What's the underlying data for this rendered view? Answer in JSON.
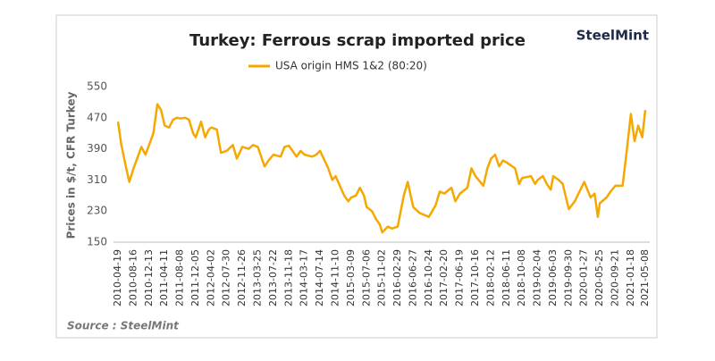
{
  "chart_data": {
    "type": "line",
    "title": "Turkey: Ferrous scrap imported price",
    "logo": "SteelMint",
    "ylabel": "Prices in $/t, CFR Turkey",
    "source": "Source : SteelMint",
    "xlim": [
      "2010-04-19",
      "2021-05-08"
    ],
    "xticks": [
      "2010-04-19",
      "2010-08-16",
      "2010-12-13",
      "2011-04-11",
      "2011-08-08",
      "2011-12-05",
      "2012-04-02",
      "2012-07-30",
      "2012-11-26",
      "2013-03-25",
      "2013-07-22",
      "2013-11-18",
      "2014-03-17",
      "2014-07-14",
      "2014-11-10",
      "2015-03-09",
      "2015-07-06",
      "2015-11-02",
      "2016-02-29",
      "2016-06-27",
      "2016-10-24",
      "2017-02-20",
      "2017-06-19",
      "2017-10-16",
      "2018-02-12",
      "2018-06-11",
      "2018-10-08",
      "2019-02-04",
      "2019-06-03",
      "2019-09-30",
      "2020-01-27",
      "2020-05-25",
      "2020-09-21",
      "2021-01-18",
      "2021-05-08"
    ],
    "ylim": [
      150,
      550
    ],
    "yticks": [
      150,
      230,
      310,
      390,
      470,
      550
    ],
    "grid": false,
    "x": [
      "2010-04-19",
      "2010-05-15",
      "2010-06-15",
      "2010-07-15",
      "2010-08-16",
      "2010-10-15",
      "2010-11-15",
      "2010-12-13",
      "2011-01-15",
      "2011-02-15",
      "2011-03-15",
      "2011-04-11",
      "2011-05-15",
      "2011-06-15",
      "2011-07-15",
      "2011-08-08",
      "2011-09-15",
      "2011-10-15",
      "2011-11-15",
      "2011-12-05",
      "2012-01-15",
      "2012-02-15",
      "2012-03-15",
      "2012-04-02",
      "2012-05-15",
      "2012-06-15",
      "2012-07-30",
      "2012-09-15",
      "2012-10-15",
      "2012-11-26",
      "2013-01-15",
      "2013-02-15",
      "2013-03-25",
      "2013-05-15",
      "2013-06-15",
      "2013-07-22",
      "2013-09-15",
      "2013-10-15",
      "2013-11-18",
      "2014-01-15",
      "2014-02-15",
      "2014-03-17",
      "2014-05-15",
      "2014-06-15",
      "2014-07-14",
      "2014-09-15",
      "2014-10-15",
      "2014-11-10",
      "2015-01-15",
      "2015-02-15",
      "2015-03-09",
      "2015-04-15",
      "2015-05-15",
      "2015-06-15",
      "2015-07-06",
      "2015-08-15",
      "2015-09-15",
      "2015-10-15",
      "2015-11-02",
      "2015-12-15",
      "2016-01-15",
      "2016-02-29",
      "2016-04-15",
      "2016-05-15",
      "2016-06-27",
      "2016-08-15",
      "2016-10-24",
      "2016-12-15",
      "2017-01-15",
      "2017-02-20",
      "2017-04-15",
      "2017-05-15",
      "2017-06-19",
      "2017-08-15",
      "2017-09-15",
      "2017-10-16",
      "2017-12-15",
      "2018-01-15",
      "2018-02-12",
      "2018-03-15",
      "2018-04-15",
      "2018-05-15",
      "2018-06-11",
      "2018-08-15",
      "2018-09-15",
      "2018-10-08",
      "2018-12-15",
      "2019-01-15",
      "2019-02-04",
      "2019-03-15",
      "2019-04-15",
      "2019-05-15",
      "2019-06-03",
      "2019-07-15",
      "2019-08-15",
      "2019-09-30",
      "2019-11-15",
      "2020-01-27",
      "2020-03-15",
      "2020-04-15",
      "2020-05-10",
      "2020-05-25",
      "2020-07-15",
      "2020-08-15",
      "2020-09-21",
      "2020-11-15",
      "2020-12-15",
      "2021-01-18",
      "2021-02-15",
      "2021-03-15",
      "2021-04-15",
      "2021-05-08"
    ],
    "series": [
      {
        "name": "USA origin HMS 1&2 (80:20)",
        "color": "#f5a800",
        "values": [
          460,
          400,
          350,
          305,
          340,
          395,
          375,
          400,
          430,
          505,
          490,
          450,
          445,
          465,
          470,
          468,
          470,
          465,
          430,
          420,
          460,
          420,
          440,
          445,
          440,
          380,
          385,
          400,
          365,
          395,
          390,
          400,
          395,
          345,
          360,
          375,
          370,
          395,
          398,
          370,
          385,
          375,
          370,
          375,
          385,
          340,
          310,
          320,
          270,
          255,
          265,
          270,
          290,
          270,
          240,
          230,
          210,
          195,
          175,
          190,
          185,
          190,
          270,
          305,
          240,
          225,
          215,
          245,
          280,
          275,
          290,
          255,
          275,
          290,
          340,
          320,
          295,
          340,
          365,
          375,
          345,
          360,
          355,
          340,
          300,
          315,
          320,
          300,
          310,
          320,
          300,
          285,
          320,
          310,
          300,
          235,
          255,
          305,
          265,
          275,
          215,
          250,
          265,
          280,
          295,
          295,
          380,
          480,
          410,
          450,
          420,
          490
        ]
      }
    ]
  }
}
